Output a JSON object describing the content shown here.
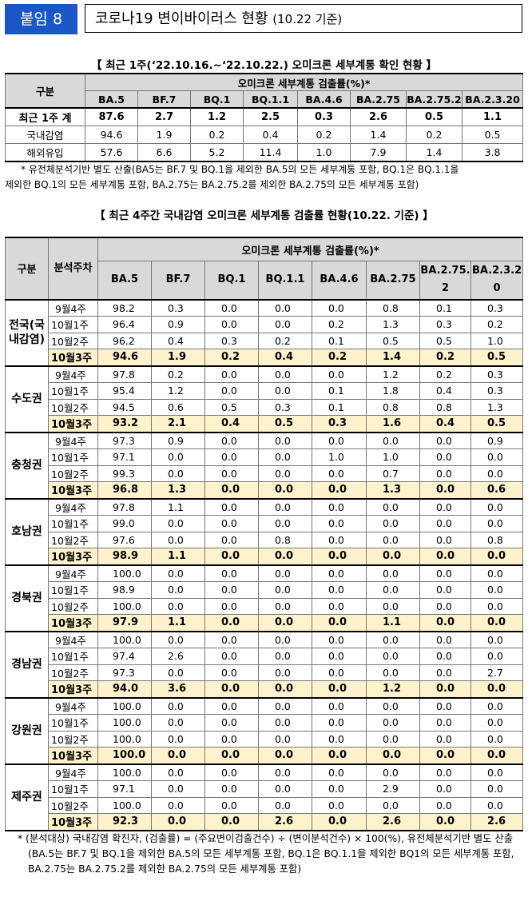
{
  "header": {
    "badge": "붙임 8",
    "title": "코로나19 변이바이러스 현황",
    "title_sub": "(10.22 기준)"
  },
  "table1": {
    "caption": "【 최근 1주(‘22.10.16.~‘22.10.22.) 오미크론 세부계통 확인 현황 】",
    "row_header": "구분",
    "group_header": "오미크론 세부계통 검출률(%)*",
    "columns": [
      "BA.5",
      "BF.7",
      "BQ.1",
      "BQ.1.1",
      "BA.4.6",
      "BA.2.75",
      "BA.2.75.2",
      "BA.2.3.20"
    ],
    "rows": [
      {
        "label": "최근 1주 계",
        "values": [
          "87.6",
          "2.7",
          "1.2",
          "2.5",
          "0.3",
          "2.6",
          "0.5",
          "1.1"
        ]
      },
      {
        "label": "국내감염",
        "values": [
          "94.6",
          "1.9",
          "0.2",
          "0.4",
          "0.2",
          "1.4",
          "0.2",
          "0.5"
        ]
      },
      {
        "label": "해외유입",
        "values": [
          "57.6",
          "6.6",
          "5.2",
          "11.4",
          "1.0",
          "7.9",
          "1.4",
          "3.8"
        ]
      }
    ],
    "note_line1": "* 유전체분석기반 별도 산출(BA5는 BF.7 및 BQ.1을 제외한 BA.5의 모든 세부계통 포함, BQ.1은 BQ.1.1을",
    "note_line2": "제외한 BQ.1의 모든 세부계통 포함, BA.2.75는 BA.2.75.2를 제외한 BA.2.75의 모든 세부계통 포함)"
  },
  "table2": {
    "caption": "【 최근 4주간 국내감염 오미크론 세부계통 검출률 현황(10.22. 기준) 】",
    "col_region": "구분",
    "col_period": "분석주차",
    "group_header": "오미크론 세부계통 검출률(%)*",
    "columns": [
      "BA.5",
      "BF.7",
      "BQ.1",
      "BQ.1.1",
      "BA.4.6",
      "BA.2.75",
      "BA.2.75.2",
      "BA.2.3.20"
    ],
    "periods": [
      "9월4주",
      "10월1주",
      "10월2주",
      "10월3주"
    ],
    "regions": [
      {
        "name": "전국(국내감염)",
        "rows": [
          [
            "98.2",
            "0.3",
            "0.0",
            "0.0",
            "0.0",
            "0.8",
            "0.1",
            "0.3"
          ],
          [
            "96.4",
            "0.9",
            "0.0",
            "0.0",
            "0.2",
            "1.3",
            "0.3",
            "0.2"
          ],
          [
            "96.2",
            "0.4",
            "0.3",
            "0.2",
            "0.1",
            "0.5",
            "0.5",
            "1.0"
          ],
          [
            "94.6",
            "1.9",
            "0.2",
            "0.4",
            "0.2",
            "1.4",
            "0.2",
            "0.5"
          ]
        ]
      },
      {
        "name": "수도권",
        "rows": [
          [
            "97.8",
            "0.2",
            "0.0",
            "0.0",
            "0.0",
            "1.2",
            "0.2",
            "0.3"
          ],
          [
            "95.4",
            "1.2",
            "0.0",
            "0.0",
            "0.1",
            "1.8",
            "0.4",
            "0.3"
          ],
          [
            "94.5",
            "0.6",
            "0.5",
            "0.3",
            "0.1",
            "0.8",
            "0.8",
            "1.3"
          ],
          [
            "93.2",
            "2.1",
            "0.4",
            "0.5",
            "0.3",
            "1.6",
            "0.4",
            "0.5"
          ]
        ]
      },
      {
        "name": "충청권",
        "rows": [
          [
            "97.3",
            "0.9",
            "0.0",
            "0.0",
            "0.0",
            "0.0",
            "0.0",
            "0.9"
          ],
          [
            "97.1",
            "0.0",
            "0.0",
            "0.0",
            "1.0",
            "1.0",
            "0.0",
            "0.0"
          ],
          [
            "99.3",
            "0.0",
            "0.0",
            "0.0",
            "0.0",
            "0.7",
            "0.0",
            "0.0"
          ],
          [
            "96.8",
            "1.3",
            "0.0",
            "0.0",
            "0.0",
            "1.3",
            "0.0",
            "0.6"
          ]
        ]
      },
      {
        "name": "호남권",
        "rows": [
          [
            "97.8",
            "1.1",
            "0.0",
            "0.0",
            "0.0",
            "0.0",
            "0.0",
            "0.0"
          ],
          [
            "99.0",
            "0.0",
            "0.0",
            "0.0",
            "0.0",
            "0.0",
            "0.0",
            "0.0"
          ],
          [
            "97.6",
            "0.0",
            "0.0",
            "0.8",
            "0.0",
            "0.0",
            "0.0",
            "0.8"
          ],
          [
            "98.9",
            "1.1",
            "0.0",
            "0.0",
            "0.0",
            "0.0",
            "0.0",
            "0.0"
          ]
        ]
      },
      {
        "name": "경북권",
        "rows": [
          [
            "100.0",
            "0.0",
            "0.0",
            "0.0",
            "0.0",
            "0.0",
            "0.0",
            "0.0"
          ],
          [
            "98.9",
            "0.0",
            "0.0",
            "0.0",
            "0.0",
            "0.0",
            "0.0",
            "0.0"
          ],
          [
            "100.0",
            "0.0",
            "0.0",
            "0.0",
            "0.0",
            "0.0",
            "0.0",
            "0.0"
          ],
          [
            "97.9",
            "1.1",
            "0.0",
            "0.0",
            "0.0",
            "1.1",
            "0.0",
            "0.0"
          ]
        ]
      },
      {
        "name": "경남권",
        "rows": [
          [
            "100.0",
            "0.0",
            "0.0",
            "0.0",
            "0.0",
            "0.0",
            "0.0",
            "0.0"
          ],
          [
            "97.4",
            "2.6",
            "0.0",
            "0.0",
            "0.0",
            "0.0",
            "0.0",
            "0.0"
          ],
          [
            "97.3",
            "0.0",
            "0.0",
            "0.0",
            "0.0",
            "0.0",
            "0.0",
            "2.7"
          ],
          [
            "94.0",
            "3.6",
            "0.0",
            "0.0",
            "0.0",
            "1.2",
            "0.0",
            "0.0"
          ]
        ]
      },
      {
        "name": "강원권",
        "rows": [
          [
            "100.0",
            "0.0",
            "0.0",
            "0.0",
            "0.0",
            "0.0",
            "0.0",
            "0.0"
          ],
          [
            "100.0",
            "0.0",
            "0.0",
            "0.0",
            "0.0",
            "0.0",
            "0.0",
            "0.0"
          ],
          [
            "100.0",
            "0.0",
            "0.0",
            "0.0",
            "0.0",
            "0.0",
            "0.0",
            "0.0"
          ],
          [
            "100.0",
            "0.0",
            "0.0",
            "0.0",
            "0.0",
            "0.0",
            "0.0",
            "0.0"
          ]
        ]
      },
      {
        "name": "제주권",
        "rows": [
          [
            "100.0",
            "0.0",
            "0.0",
            "0.0",
            "0.0",
            "0.0",
            "0.0",
            "0.0"
          ],
          [
            "97.1",
            "0.0",
            "0.0",
            "0.0",
            "0.0",
            "2.9",
            "0.0",
            "0.0"
          ],
          [
            "100.0",
            "0.0",
            "0.0",
            "0.0",
            "0.0",
            "0.0",
            "0.0",
            "0.0"
          ],
          [
            "92.3",
            "0.0",
            "0.0",
            "2.6",
            "0.0",
            "2.6",
            "0.0",
            "2.6"
          ]
        ]
      }
    ],
    "note": "* (분석대상) 국내감염 확진자, (검출률) = (주요변이검출건수) ÷ (변이분석건수) × 100(%), 유전체분석기반 별도 산출(BA.5는 BF.7 및 BQ.1을 제외한 BA.5의 모든 세부계통 포함, BQ.1은 BQ.1.1을 제외한 BQ1의 모든 세부계통 포함, BA.2.75는 BA.2.75.2를 제외한 BA.2.75의 모든 세부계통 포함)"
  }
}
